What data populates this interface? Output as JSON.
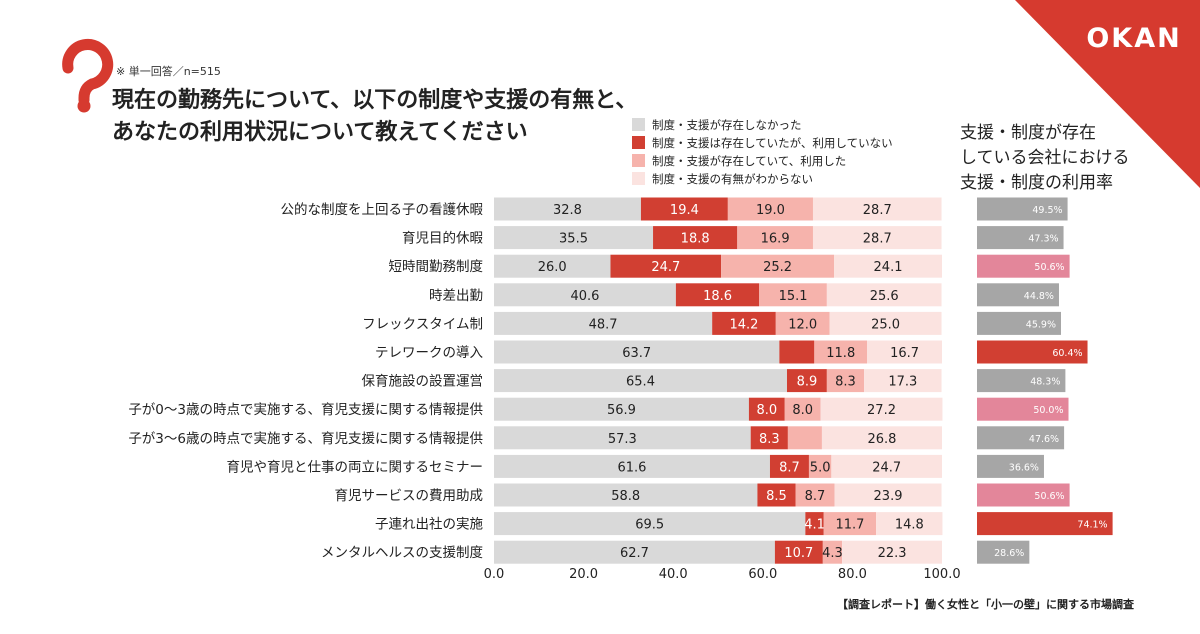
{
  "brand": {
    "logo_text": "OKAN",
    "accent_color": "#d63a2f",
    "logo_text_color": "#ffffff"
  },
  "header": {
    "icon": "question-mark-icon",
    "note": "※ 単一回答／n=515",
    "title_line1": "現在の勤務先について、以下の制度や支援の有無と、",
    "title_line2": "あなたの利用状況について教えてください"
  },
  "footer": {
    "source": "【調査レポート】働く女性と「小一の壁」に関する市場調査"
  },
  "chart_data": [
    {
      "type": "bar",
      "orientation": "horizontal",
      "stacked": true,
      "categories": [
        "公的な制度を上回る子の看護休暇",
        "育児目的休暇",
        "短時間勤務制度",
        "時差出勤",
        "フレックスタイム制",
        "テレワークの導入",
        "保育施設の設置運営",
        "子が0〜3歳の時点で実施する、育児支援に関する情報提供",
        "子が3〜6歳の時点で実施する、育児支援に関する情報提供",
        "育児や育児と仕事の両立に関するセミナー",
        "育児サービスの費用助成",
        "子連れ出社の実施",
        "メンタルヘルスの支援制度"
      ],
      "series": [
        {
          "name": "制度・支援が存在しなかった",
          "color": "#d9d9d9",
          "values": [
            32.8,
            35.5,
            26.0,
            40.6,
            48.7,
            63.7,
            65.4,
            56.9,
            57.3,
            61.6,
            58.8,
            69.5,
            62.7
          ],
          "labels": [
            "32.8",
            "35.5",
            "26.0",
            "40.6",
            "48.7",
            "63.7",
            "65.4",
            "56.9",
            "57.3",
            "61.6",
            "58.8",
            "69.5",
            "62.7"
          ]
        },
        {
          "name": "制度・支援は存在していたが、利用していない",
          "color": "#d13f32",
          "values": [
            19.4,
            18.8,
            24.7,
            18.6,
            14.2,
            7.8,
            8.9,
            8.0,
            8.3,
            8.7,
            8.5,
            4.1,
            10.7
          ],
          "labels": [
            "19.4",
            "18.8",
            "24.7",
            "18.6",
            "14.2",
            "",
            "8.9",
            "8.0",
            "8.3",
            "8.7",
            "8.5",
            "4.1",
            "10.7"
          ]
        },
        {
          "name": "制度・支援が存在していて、利用した",
          "color": "#f6b3ac",
          "values": [
            19.0,
            16.9,
            25.2,
            15.1,
            12.0,
            11.8,
            8.3,
            8.0,
            7.6,
            5.0,
            8.7,
            11.7,
            4.3
          ],
          "labels": [
            "19.0",
            "16.9",
            "25.2",
            "15.1",
            "12.0",
            "11.8",
            "8.3",
            "8.0",
            "",
            "5.0",
            "8.7",
            "11.7",
            "4.3"
          ]
        },
        {
          "name": "制度・支援の有無がわからない",
          "color": "#fbe3e0",
          "values": [
            28.7,
            28.7,
            24.1,
            25.6,
            25.0,
            16.7,
            17.3,
            27.2,
            26.8,
            24.7,
            23.9,
            14.8,
            22.3
          ],
          "labels": [
            "28.7",
            "28.7",
            "24.1",
            "25.6",
            "25.0",
            "16.7",
            "17.3",
            "27.2",
            "26.8",
            "24.7",
            "23.9",
            "14.8",
            "22.3"
          ]
        }
      ],
      "xlim": [
        0,
        100
      ],
      "xticks": [
        "0.0",
        "20.0",
        "40.0",
        "60.0",
        "80.0",
        "100.0"
      ],
      "grid": false,
      "legend_position": "top-right"
    },
    {
      "type": "bar",
      "orientation": "horizontal",
      "title_lines": [
        "支援・制度が存在",
        "している会社における",
        "支援・制度の利用率"
      ],
      "categories": [
        "公的な制度を上回る子の看護休暇",
        "育児目的休暇",
        "短時間勤務制度",
        "時差出勤",
        "フレックスタイム制",
        "テレワークの導入",
        "保育施設の設置運営",
        "子が0〜3歳の時点で実施する、育児支援に関する情報提供",
        "子が3〜6歳の時点で実施する、育児支援に関する情報提供",
        "育児や育児と仕事の両立に関するセミナー",
        "育児サービスの費用助成",
        "子連れ出社の実施",
        "メンタルヘルスの支援制度"
      ],
      "values": [
        49.5,
        47.3,
        50.6,
        44.8,
        45.9,
        60.4,
        48.3,
        50.0,
        47.6,
        36.6,
        50.6,
        74.1,
        28.6
      ],
      "labels": [
        "49.5%",
        "47.3%",
        "50.6%",
        "44.8%",
        "45.9%",
        "60.4%",
        "48.3%",
        "50.0%",
        "47.6%",
        "36.6%",
        "50.6%",
        "74.1%",
        "28.6%"
      ],
      "colors": [
        "#a6a6a6",
        "#a6a6a6",
        "#e3869a",
        "#a6a6a6",
        "#a6a6a6",
        "#d13f32",
        "#a6a6a6",
        "#e3869a",
        "#a6a6a6",
        "#a6a6a6",
        "#e3869a",
        "#d13f32",
        "#a6a6a6"
      ]
    }
  ]
}
